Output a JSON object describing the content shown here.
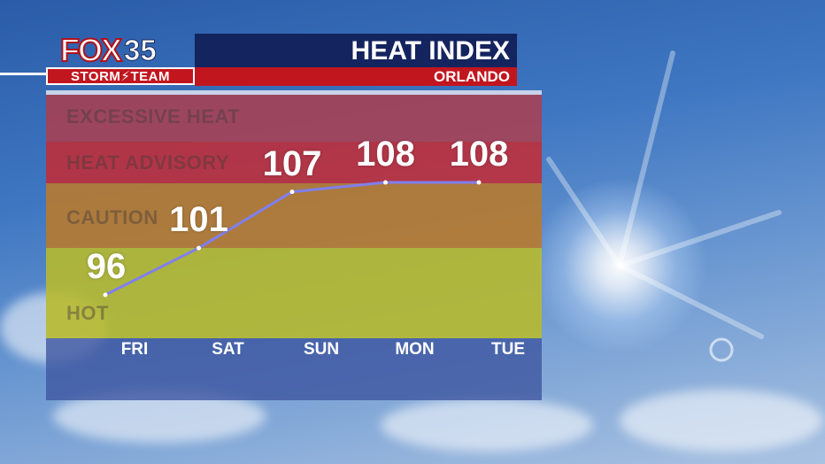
{
  "header": {
    "logo_fox": "FOX",
    "logo_number": "35",
    "logo_team": "STORM⚡TEAM",
    "title": "HEAT INDEX",
    "location": "ORLANDO"
  },
  "colors": {
    "brand_red": "#c2161f",
    "brand_navy": "#14245f",
    "line": "#7f7ff0",
    "band_excessive": "#b23c4a",
    "band_advisory": "#c62a33",
    "band_caution": "#bb7a2a",
    "band_hot": "#b8bb2a",
    "band_base": "#3e56a0"
  },
  "bands": [
    {
      "label": "EXCESSIVE HEAT",
      "color": "#b23c4a"
    },
    {
      "label": "HEAT ADVISORY",
      "color": "#c62a33"
    },
    {
      "label": "CAUTION",
      "color": "#bb7a2a"
    },
    {
      "label": "HOT",
      "color": "#b8bb2a"
    }
  ],
  "chart_data": {
    "type": "line",
    "title": "HEAT INDEX",
    "categories": [
      "FRI",
      "SAT",
      "SUN",
      "MON",
      "TUE"
    ],
    "series": [
      {
        "values": [
          96,
          101,
          107,
          108,
          108
        ]
      }
    ],
    "data_labels": [
      "96",
      "101",
      "107",
      "108",
      "108"
    ],
    "grid": false,
    "legend": "none"
  }
}
